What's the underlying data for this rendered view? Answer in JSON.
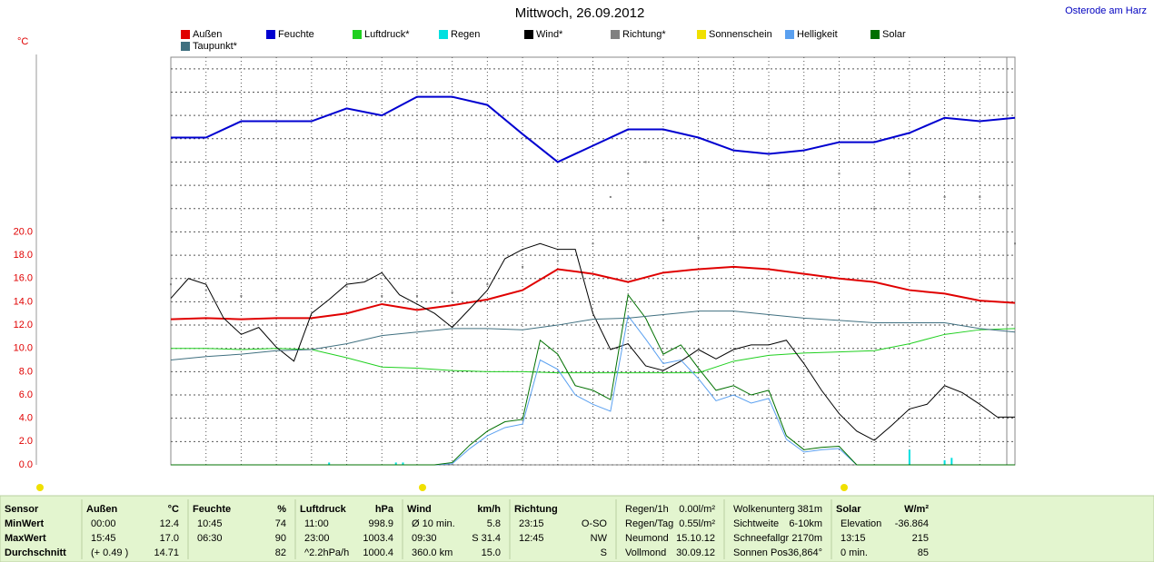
{
  "chart_data": {
    "type": "line",
    "title": "Mittwoch, 26.09.2012",
    "location": "Osterode am Harz",
    "y_unit": "°C",
    "xlim": [
      0,
      24
    ],
    "xgrid": [
      1,
      2,
      3,
      4,
      5,
      6,
      7,
      8,
      9,
      10,
      11,
      12,
      13,
      14,
      15,
      16,
      17,
      18,
      19,
      20,
      21,
      22,
      23
    ],
    "ylim": [
      0,
      35
    ],
    "yticks": [
      {
        "value": 0,
        "label": "0.0"
      },
      {
        "value": 2,
        "label": "2.0"
      },
      {
        "value": 4,
        "label": "4.0"
      },
      {
        "value": 6,
        "label": "6.0"
      },
      {
        "value": 8,
        "label": "8.0"
      },
      {
        "value": 10,
        "label": "10.0"
      },
      {
        "value": 12,
        "label": "12.0"
      },
      {
        "value": 14,
        "label": "14.0"
      },
      {
        "value": 16,
        "label": "16.0"
      },
      {
        "value": 18,
        "label": "18.0"
      },
      {
        "value": 20,
        "label": "20.0"
      }
    ],
    "grid": true,
    "series": [
      {
        "name": "Außen",
        "color": "#e00000",
        "width": 2,
        "x": [
          0,
          1,
          2,
          3,
          4,
          5,
          6,
          7,
          8,
          9,
          10,
          11,
          12,
          13,
          14,
          15,
          16,
          17,
          18,
          19,
          20,
          21,
          22,
          23,
          24
        ],
        "values": [
          12.5,
          12.6,
          12.5,
          12.6,
          12.6,
          13.0,
          13.8,
          13.3,
          13.7,
          14.2,
          15.0,
          16.8,
          16.4,
          15.7,
          16.5,
          16.8,
          17.0,
          16.8,
          16.4,
          16.0,
          15.7,
          15.0,
          14.7,
          14.1,
          13.9
        ]
      },
      {
        "name": "Feuchte",
        "color": "#0000d0",
        "width": 2,
        "x": [
          0,
          1,
          2,
          3,
          4,
          5,
          6,
          7,
          8,
          9,
          10,
          11,
          12,
          13,
          14,
          15,
          16,
          17,
          18,
          19,
          20,
          21,
          22,
          23,
          24
        ],
        "values": [
          28.1,
          28.1,
          29.5,
          29.5,
          29.5,
          30.6,
          30.0,
          31.6,
          31.6,
          30.9,
          28.4,
          26.0,
          27.4,
          28.8,
          28.8,
          28.1,
          27.0,
          26.7,
          27.0,
          27.7,
          27.7,
          28.5,
          29.8,
          29.5,
          29.8
        ]
      },
      {
        "name": "Luftdruck*",
        "color": "#20d020",
        "width": 1,
        "x": [
          0,
          1,
          2,
          3,
          4,
          5,
          6,
          7,
          8,
          9,
          10,
          11,
          12,
          13,
          14,
          15,
          16,
          17,
          18,
          19,
          20,
          21,
          22,
          23,
          24
        ],
        "values": [
          10.0,
          10.0,
          9.9,
          10.0,
          9.9,
          9.2,
          8.4,
          8.3,
          8.1,
          8.0,
          8.0,
          7.9,
          7.9,
          7.9,
          7.9,
          7.9,
          8.9,
          9.4,
          9.6,
          9.7,
          9.8,
          10.4,
          11.2,
          11.6,
          11.7
        ]
      },
      {
        "name": "Regen",
        "color": "#00e0e0",
        "style": "bars",
        "x": [
          4.5,
          6.4,
          6.6,
          21.0,
          22.0,
          22.2
        ],
        "values": [
          0.2,
          0.2,
          0.2,
          1.3,
          0.4,
          0.6
        ]
      },
      {
        "name": "Wind*",
        "color": "#000000",
        "width": 1,
        "x": [
          0,
          0.5,
          1,
          1.5,
          2,
          2.5,
          3,
          3.5,
          4,
          4.5,
          5,
          5.5,
          6,
          6.5,
          7,
          7.5,
          8,
          8.5,
          9,
          9.5,
          10,
          10.5,
          11,
          11.5,
          12,
          12.5,
          13,
          13.5,
          14,
          14.5,
          15,
          15.5,
          16,
          16.5,
          17,
          17.5,
          18,
          18.5,
          19,
          19.5,
          20,
          20.5,
          21,
          21.5,
          22,
          22.5,
          23,
          23.5,
          24
        ],
        "values": [
          14.3,
          16.0,
          15.5,
          12.6,
          11.2,
          11.8,
          10.1,
          8.9,
          13.0,
          14.2,
          15.5,
          15.7,
          16.5,
          14.6,
          13.8,
          13.0,
          11.8,
          13.4,
          15.0,
          17.7,
          18.5,
          19.0,
          18.5,
          18.5,
          13.0,
          9.9,
          10.4,
          8.5,
          8.1,
          8.9,
          9.9,
          9.1,
          9.9,
          10.3,
          10.3,
          10.7,
          8.7,
          6.4,
          4.4,
          2.9,
          2.1,
          3.4,
          4.8,
          5.2,
          6.8,
          6.2,
          5.2,
          4.1,
          4.1
        ]
      },
      {
        "name": "Richtung*",
        "color": "#808080",
        "style": "dots",
        "x": [
          0,
          1,
          2,
          3,
          4,
          5,
          6,
          7,
          8,
          9,
          10,
          11,
          12,
          12.5,
          13,
          13.5,
          14,
          15,
          16,
          17,
          18,
          19,
          20,
          21,
          22,
          23,
          24
        ],
        "values": [
          15.5,
          15.0,
          14.5,
          15.0,
          15.0,
          15.3,
          14.5,
          14.5,
          14.8,
          15.5,
          17.0,
          17.5,
          19.0,
          23.0,
          25.0,
          26.0,
          21.0,
          19.5,
          20.0,
          24.0,
          24.0,
          25.0,
          22.0,
          25.0,
          23.0,
          23.0,
          19.0
        ]
      },
      {
        "name": "Sonnenschein",
        "color": "#f0e000",
        "values": []
      },
      {
        "name": "Helligkeit",
        "color": "#5aa0f0",
        "width": 1,
        "x": [
          0,
          0.5,
          1,
          1.5,
          2,
          2.5,
          3,
          3.5,
          4,
          4.5,
          5,
          5.5,
          6,
          6.5,
          7,
          7.5,
          8,
          8.5,
          9,
          9.5,
          10,
          10.5,
          11,
          11.5,
          12,
          12.5,
          13,
          13.5,
          14,
          14.5,
          15,
          15.5,
          16,
          16.5,
          17,
          17.5,
          18,
          18.5,
          19,
          19.5,
          20,
          20.5,
          21,
          21.5,
          22,
          22.5,
          23,
          23.5,
          24
        ],
        "values": [
          0,
          0,
          0,
          0,
          0,
          0,
          0,
          0,
          0,
          0,
          0,
          0,
          0,
          0,
          0,
          0,
          0.1,
          1.4,
          2.5,
          3.2,
          3.5,
          9.0,
          8.2,
          6.0,
          5.2,
          4.6,
          12.8,
          10.8,
          8.7,
          9.0,
          7.4,
          5.5,
          6.0,
          5.3,
          5.7,
          2.2,
          1.1,
          1.3,
          1.4,
          0,
          0,
          0,
          0,
          0,
          0,
          0,
          0,
          0,
          0
        ]
      },
      {
        "name": "Solar",
        "color": "#007000",
        "width": 1,
        "x": [
          0,
          0.5,
          1,
          1.5,
          2,
          2.5,
          3,
          3.5,
          4,
          4.5,
          5,
          5.5,
          6,
          6.5,
          7,
          7.5,
          8,
          8.5,
          9,
          9.5,
          10,
          10.5,
          11,
          11.5,
          12,
          12.5,
          13,
          13.5,
          14,
          14.5,
          15,
          15.5,
          16,
          16.5,
          17,
          17.5,
          18,
          18.5,
          19,
          19.5,
          20,
          20.5,
          21,
          21.5,
          22,
          22.5,
          23,
          23.5,
          24
        ],
        "values": [
          0,
          0,
          0,
          0,
          0,
          0,
          0,
          0,
          0,
          0,
          0,
          0,
          0,
          0,
          0,
          0,
          0.2,
          1.7,
          2.9,
          3.7,
          3.9,
          10.7,
          9.5,
          6.8,
          6.4,
          5.6,
          14.6,
          12.6,
          9.5,
          10.3,
          8.3,
          6.4,
          6.8,
          6.0,
          6.4,
          2.5,
          1.3,
          1.5,
          1.6,
          0,
          0,
          0,
          0,
          0,
          0,
          0,
          0,
          0,
          0
        ]
      },
      {
        "name": "Taupunkt*",
        "color": "#407080",
        "width": 1,
        "x": [
          0,
          1,
          2,
          3,
          4,
          5,
          6,
          7,
          8,
          9,
          10,
          11,
          12,
          13,
          14,
          15,
          16,
          17,
          18,
          19,
          20,
          21,
          22,
          23,
          24
        ],
        "values": [
          9.0,
          9.3,
          9.5,
          9.8,
          9.9,
          10.4,
          11.1,
          11.4,
          11.7,
          11.7,
          11.6,
          12.0,
          12.5,
          12.6,
          12.9,
          13.2,
          13.2,
          12.9,
          12.6,
          12.4,
          12.2,
          12.2,
          12.2,
          11.7,
          11.4
        ]
      }
    ]
  },
  "table": {
    "columns": [
      {
        "header": [
          "Sensor"
        ],
        "rows": [
          [
            "MinWert"
          ],
          [
            "MaxWert"
          ],
          [
            "Durchschnitt"
          ]
        ]
      },
      {
        "header": [
          "Außen",
          "°C"
        ],
        "rows": [
          [
            "00:00",
            "12.4"
          ],
          [
            "15:45",
            "17.0"
          ],
          [
            "(+ 0.49 )",
            "14.71"
          ]
        ]
      },
      {
        "header": [
          "Feuchte",
          "%"
        ],
        "rows": [
          [
            "10:45",
            "74"
          ],
          [
            "06:30",
            "90"
          ],
          [
            "82"
          ]
        ]
      },
      {
        "header": [
          "Luftdruck",
          "hPa"
        ],
        "rows": [
          [
            "11:00",
            "998.9"
          ],
          [
            "23:00",
            "1003.4"
          ],
          [
            "^2.2hPa/h",
            "1000.4"
          ]
        ]
      },
      {
        "header": [
          "Wind",
          "km/h"
        ],
        "rows": [
          [
            "Ø 10 min.",
            "5.8"
          ],
          [
            "09:30",
            "S 31.4"
          ],
          [
            "360.0 km",
            "15.0"
          ]
        ]
      },
      {
        "header": [
          "Richtung"
        ],
        "rows": [
          [
            "23:15",
            "O-SO"
          ],
          [
            "12:45",
            "NW"
          ],
          [
            "S"
          ]
        ]
      },
      {
        "rows": [
          [
            "Regen/1h",
            "0.00l/m²"
          ],
          [
            "Regen/Tag",
            "0.55l/m²"
          ],
          [
            "Neumond",
            "15.10.12"
          ],
          [
            "Vollmond",
            "30.09.12"
          ]
        ]
      },
      {
        "rows": [
          [
            "Wolkenunterg",
            "381m"
          ],
          [
            "Sichtweite",
            "6-10km"
          ],
          [
            "Schneefallgr",
            "2170m"
          ],
          [
            "Sonnen Pos",
            "-36,864°"
          ]
        ]
      },
      {
        "header": [
          "Solar",
          "W/m²"
        ],
        "rows": [
          [
            "Elevation",
            "-36.864"
          ],
          [
            "13:15",
            "215"
          ],
          [
            "0 min.",
            "85"
          ]
        ]
      }
    ]
  }
}
